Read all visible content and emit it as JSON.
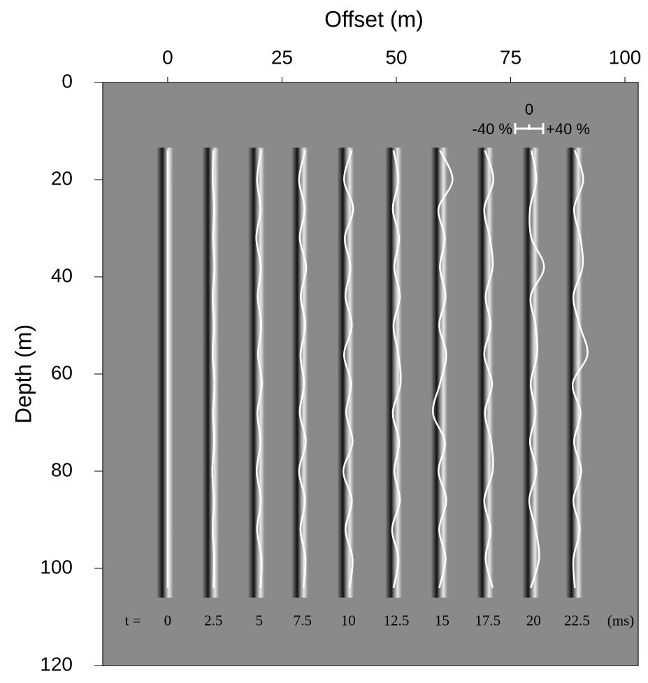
{
  "chart_data": {
    "type": "wavefield",
    "title": "Offset (m)",
    "y_label": "Depth (m)",
    "xlim": [
      -14.2,
      102.9
    ],
    "ylim": [
      0,
      120
    ],
    "y_inverted": true,
    "xticks": [
      0,
      25,
      50,
      75,
      100
    ],
    "yticks": [
      0,
      20,
      40,
      60,
      80,
      100,
      120
    ],
    "background": "#8a8a8a",
    "trace_color": "#ffffff",
    "time_prefix": "t =",
    "time_unit": "(ms)",
    "depths": [
      14,
      20,
      26,
      32,
      38,
      44,
      50,
      56,
      62,
      68,
      74,
      80,
      86,
      92,
      98,
      104
    ],
    "series": [
      {
        "name": "0",
        "offset": 0,
        "values": [
          0,
          0,
          0,
          0,
          0,
          0,
          0,
          0,
          0,
          0,
          0,
          0,
          0,
          0,
          0,
          0
        ]
      },
      {
        "name": "2.5",
        "offset": 10,
        "values": [
          0,
          -2,
          2,
          -1,
          3,
          -2,
          1,
          -2,
          3,
          -1,
          2,
          -3,
          1,
          -2,
          2,
          0
        ]
      },
      {
        "name": "5",
        "offset": 20,
        "values": [
          6,
          -6,
          4,
          -8,
          5,
          -4,
          6,
          -3,
          8,
          -5,
          4,
          -7,
          5,
          -6,
          7,
          4
        ]
      },
      {
        "name": "7.5",
        "offset": 29.5,
        "values": [
          8,
          -10,
          6,
          -8,
          10,
          -5,
          8,
          -6,
          4,
          -8,
          9,
          -10,
          7,
          -6,
          8,
          3
        ]
      },
      {
        "name": "10",
        "offset": 39.5,
        "values": [
          10,
          -12,
          14,
          -10,
          6,
          -8,
          10,
          -12,
          8,
          -6,
          12,
          -14,
          10,
          -8,
          12,
          4
        ]
      },
      {
        "name": "12.5",
        "offset": 50,
        "values": [
          -8,
          6,
          -10,
          8,
          -6,
          10,
          -8,
          6,
          12,
          -10,
          8,
          -6,
          10,
          -12,
          6,
          -8
        ]
      },
      {
        "name": "15",
        "offset": 60,
        "values": [
          -6,
          30,
          -10,
          8,
          -6,
          10,
          -8,
          12,
          -6,
          -26,
          8,
          -10,
          12,
          -8,
          10,
          -8
        ]
      },
      {
        "name": "17.5",
        "offset": 70,
        "values": [
          -8,
          16,
          -10,
          6,
          14,
          -6,
          8,
          -10,
          12,
          -8,
          10,
          14,
          -10,
          8,
          -6,
          14
        ]
      },
      {
        "name": "20",
        "offset": 80,
        "values": [
          -6,
          8,
          -10,
          -6,
          30,
          -8,
          6,
          10,
          -8,
          6,
          -10,
          8,
          -12,
          6,
          16,
          -8
        ]
      },
      {
        "name": "22.5",
        "offset": 89.5,
        "values": [
          -6,
          18,
          -8,
          10,
          16,
          -10,
          8,
          30,
          -12,
          10,
          -8,
          12,
          -10,
          8,
          -10,
          -6
        ]
      }
    ],
    "scale_bar": {
      "min": {
        "value": -40,
        "label": "-40 %"
      },
      "center": {
        "value": 0,
        "label": "0"
      },
      "max": {
        "value": 40,
        "label": "+40 %"
      }
    }
  }
}
